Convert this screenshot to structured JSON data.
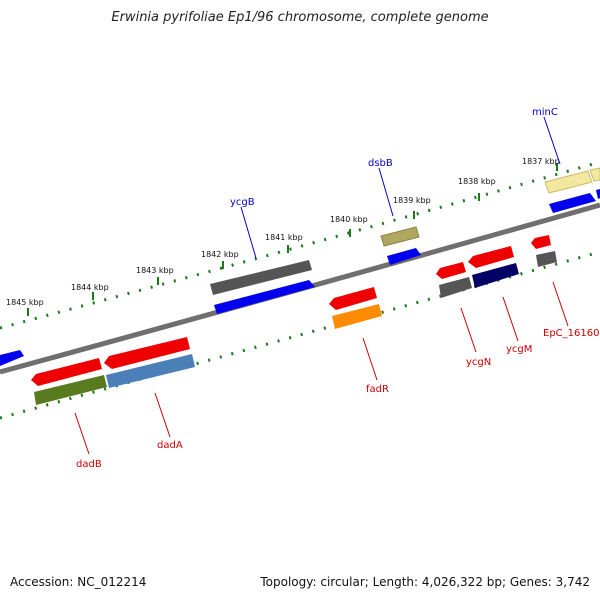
{
  "title": "Erwinia pyrifoliae Ep1/96 chromosome, complete genome",
  "accession_text": "Accession: NC_012214",
  "summary_text": "Topology: circular; Length: 4,026,322 bp; Genes: 3,742",
  "ticks": [
    "1837 kbp",
    "1838 kbp",
    "1839 kbp",
    "1840 kbp",
    "1841 kbp",
    "1842 kbp",
    "1843 kbp",
    "1844 kbp",
    "1845 kbp"
  ],
  "upper_genes": [
    {
      "label": "minC",
      "color": "#0000cc"
    },
    {
      "label": "dsbB",
      "color": "#0000cc"
    },
    {
      "label": "ycgB",
      "color": "#0000cc"
    }
  ],
  "lower_genes": [
    {
      "label": "EpC_16160",
      "color": "#cc0000"
    },
    {
      "label": "ycgM",
      "color": "#cc0000"
    },
    {
      "label": "ycgN",
      "color": "#cc0000"
    },
    {
      "label": "fadR",
      "color": "#cc0000"
    },
    {
      "label": "dadA",
      "color": "#cc0000"
    },
    {
      "label": "dadB",
      "color": "#cc0000"
    }
  ],
  "colors": {
    "backbone": "#777777",
    "tick_dots": "#1a7a1a",
    "forward_gene": "#0000ee",
    "reverse_gene": "#ee0000",
    "pseudo_gray": "#555555",
    "olive": "#b0a860",
    "pale_yellow": "#f2e8a0",
    "orange": "#ff8c00",
    "navy": "#000066",
    "dark_olive": "#5a7a20",
    "steel_blue": "#4a7fb8"
  }
}
